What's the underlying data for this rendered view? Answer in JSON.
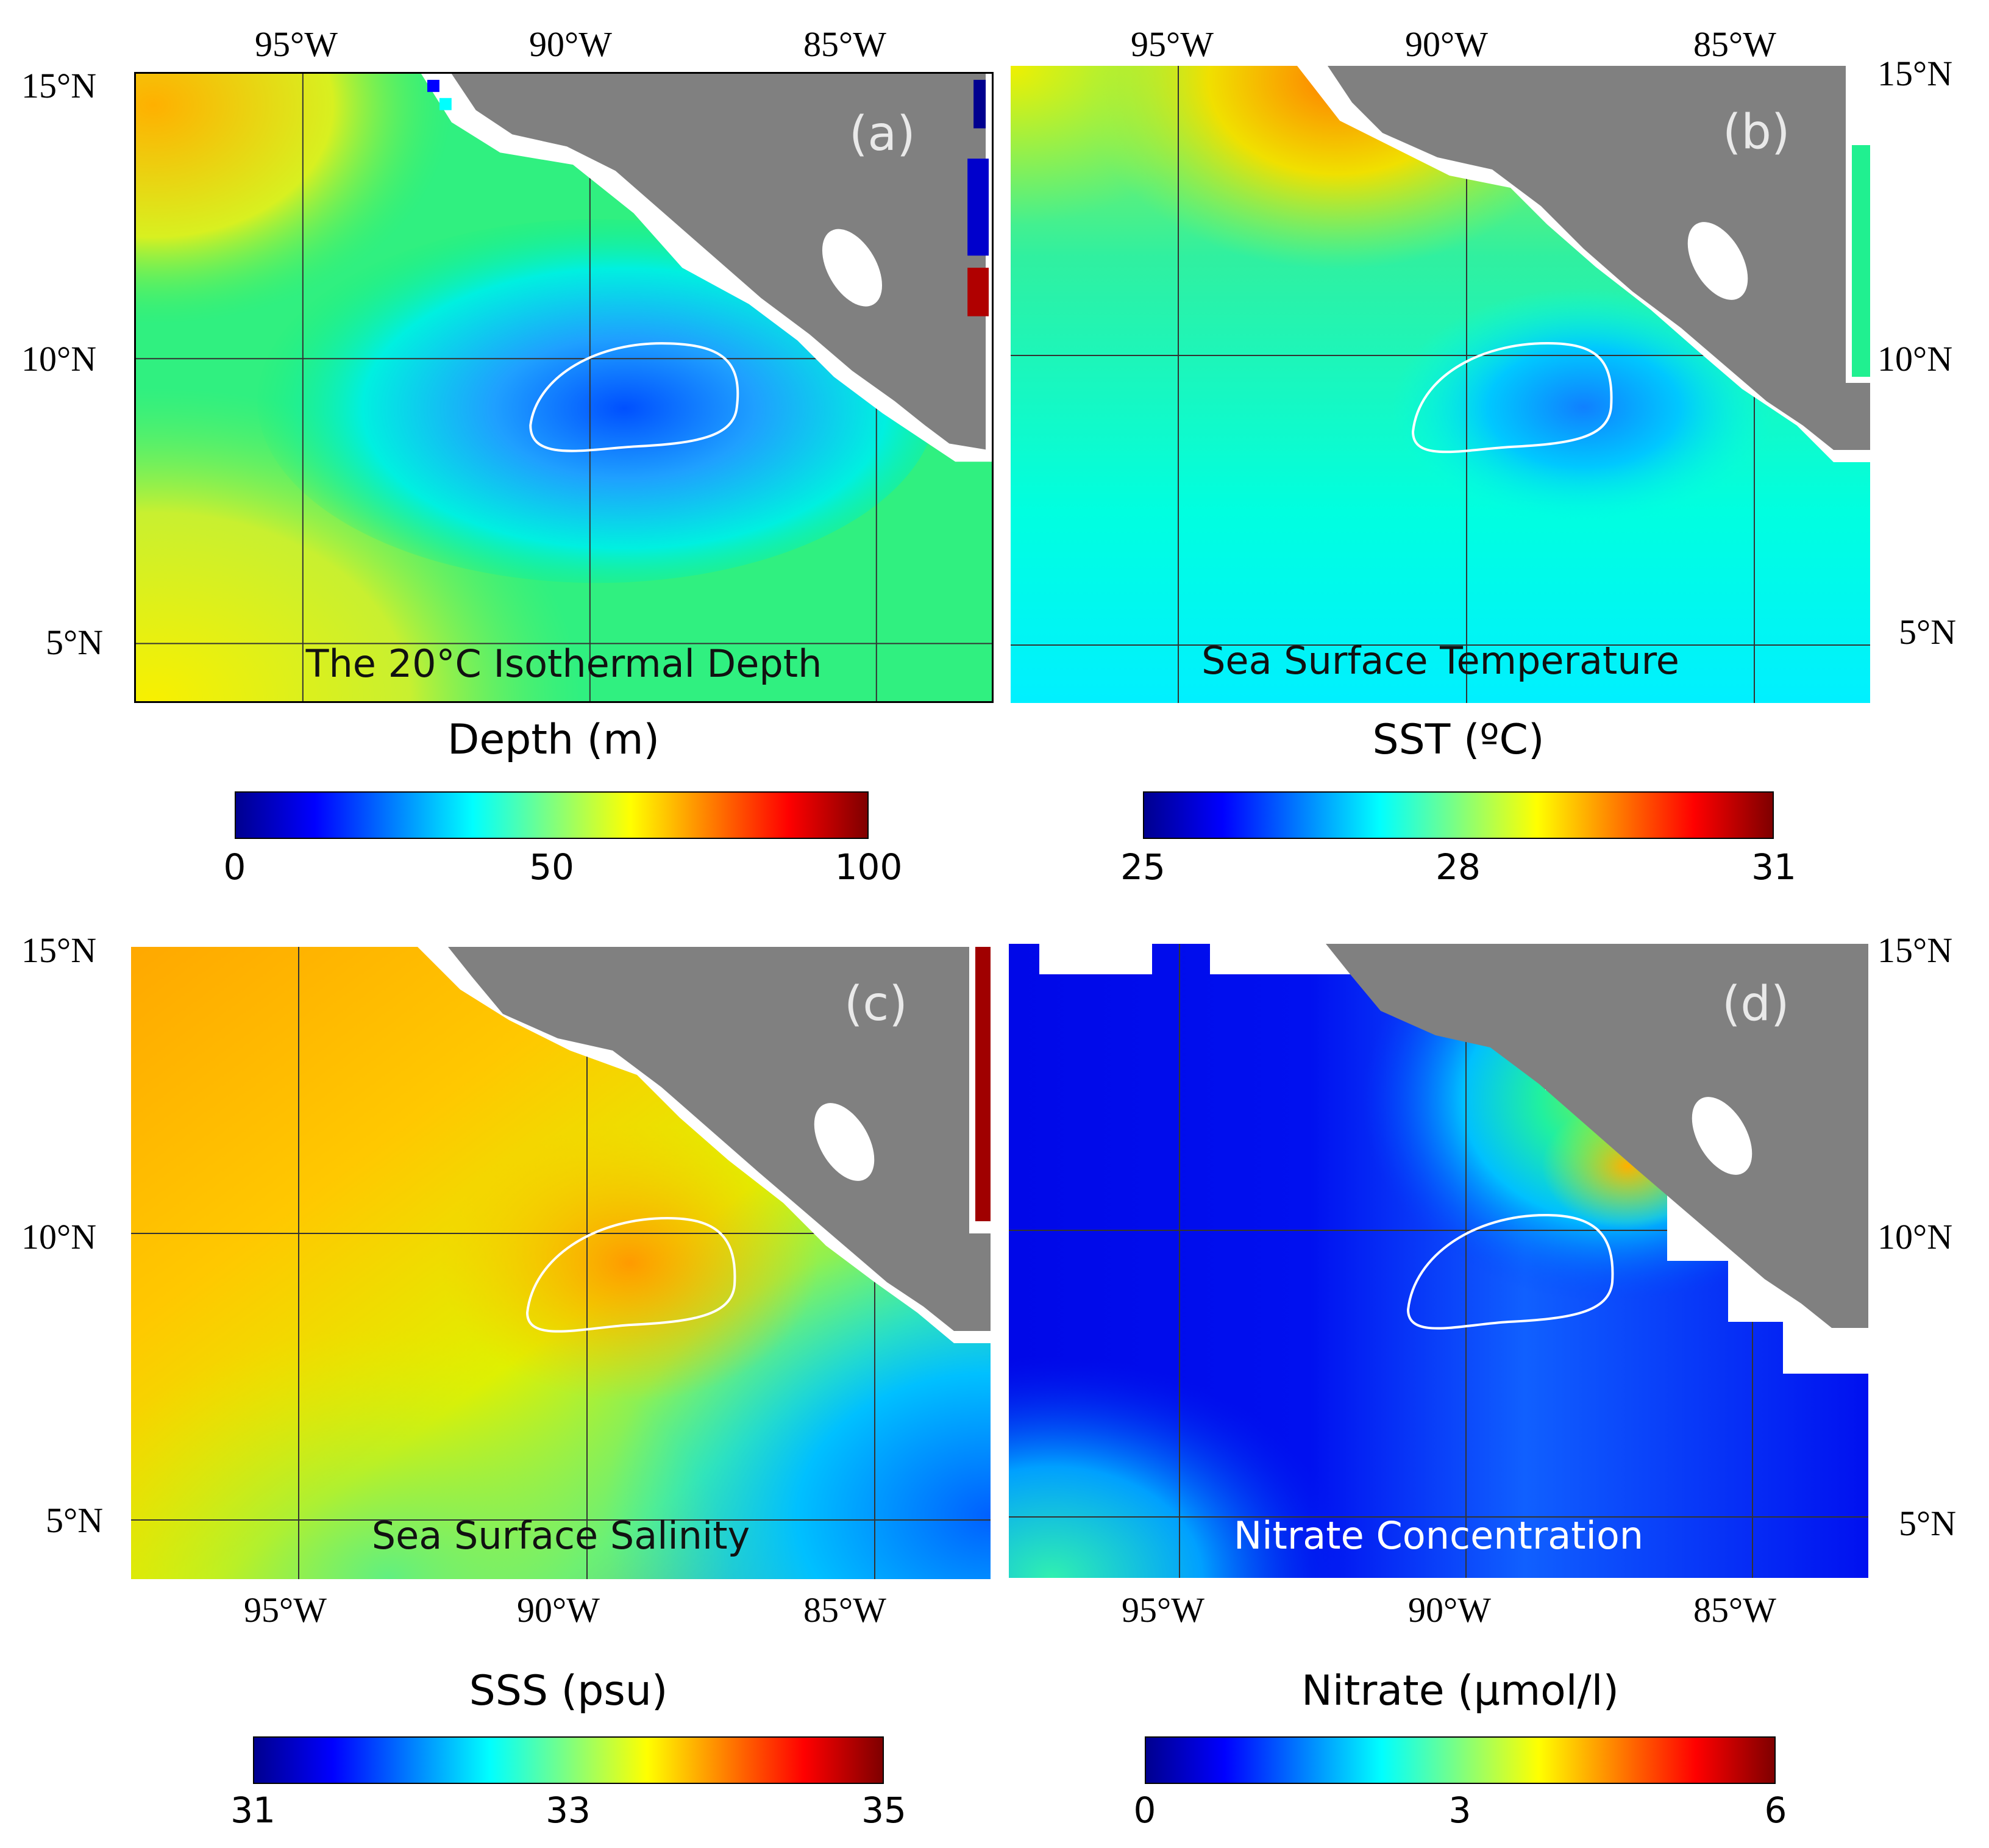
{
  "panels": [
    {
      "letter": "(a)",
      "title": "The 20°C Isothermal Depth",
      "colorbar": {
        "label": "Depth (m)",
        "ticks": [
          "0",
          "50",
          "100"
        ]
      },
      "lon_labels_top": [
        "95°W",
        "90°W",
        "85°W"
      ],
      "lat_labels_left": [
        "15°N",
        "10°N",
        "5°N"
      ]
    },
    {
      "letter": "(b)",
      "title": "Sea Surface Temperature",
      "colorbar": {
        "label": "SST (ºC)",
        "ticks": [
          "25",
          "28",
          "31"
        ]
      },
      "lon_labels_top": [
        "95°W",
        "90°W",
        "85°W"
      ],
      "lat_labels_right": [
        "15°N",
        "10°N",
        "5°N"
      ]
    },
    {
      "letter": "(c)",
      "title": "Sea Surface Salinity",
      "colorbar": {
        "label": "SSS (psu)",
        "ticks": [
          "31",
          "33",
          "35"
        ]
      },
      "lon_labels_bottom": [
        "95°W",
        "90°W",
        "85°W"
      ],
      "lat_labels_left": [
        "15°N",
        "10°N",
        "5°N"
      ]
    },
    {
      "letter": "(d)",
      "title": "Nitrate Concentration",
      "colorbar": {
        "label": "Nitrate (μmol/l)",
        "ticks": [
          "0",
          "3",
          "6"
        ]
      },
      "lon_labels_bottom": [
        "95°W",
        "90°W",
        "85°W"
      ],
      "lat_labels_right": [
        "15°N",
        "10°N",
        "5°N"
      ]
    }
  ],
  "colors": {
    "land": "#808080",
    "eddy_contour": "#ffffff",
    "colormap": [
      "#00008f",
      "#0000ff",
      "#007fff",
      "#00ffff",
      "#7fff7f",
      "#ffff00",
      "#ff7f00",
      "#ff0000",
      "#7f0000"
    ]
  }
}
